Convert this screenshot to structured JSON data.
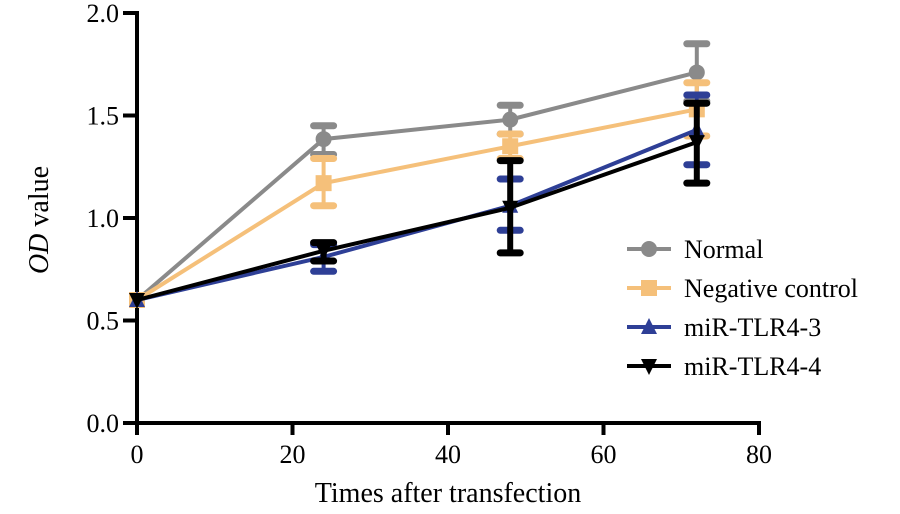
{
  "chart_data": {
    "type": "line",
    "title": "",
    "xlabel": "Times after transfection",
    "ylabel_italic": "OD",
    "ylabel_rest": " value",
    "xlim": [
      0,
      80
    ],
    "ylim": [
      0,
      2.0
    ],
    "xticks": [
      0,
      20,
      40,
      60,
      80
    ],
    "xtick_labels": [
      "0",
      "20",
      "40",
      "60",
      "80"
    ],
    "yticks": [
      0,
      0.5,
      1.0,
      1.5,
      2.0
    ],
    "ytick_labels": [
      "0.0",
      "0.5",
      "1.0",
      "1.5",
      "2.0"
    ],
    "grid": false,
    "legend_position": "right",
    "x": [
      0,
      24,
      48,
      72
    ],
    "series": [
      {
        "name": "Normal",
        "color": "#8a8a8a",
        "marker": "circle",
        "values": [
          0.6,
          1.385,
          1.48,
          1.71
        ],
        "err_low": [
          0.6,
          1.31,
          1.41,
          1.57
        ],
        "err_high": [
          0.6,
          1.45,
          1.55,
          1.85
        ]
      },
      {
        "name": "Negative control",
        "color": "#f5c07a",
        "marker": "square",
        "values": [
          0.6,
          1.17,
          1.35,
          1.53
        ],
        "err_low": [
          0.6,
          1.06,
          1.29,
          1.4
        ],
        "err_high": [
          0.6,
          1.29,
          1.41,
          1.66
        ]
      },
      {
        "name": "miR-TLR4-3",
        "color": "#2e3f96",
        "marker": "triangle-up",
        "values": [
          0.6,
          0.81,
          1.06,
          1.43
        ],
        "err_low": [
          0.6,
          0.74,
          0.94,
          1.26
        ],
        "err_high": [
          0.6,
          0.87,
          1.19,
          1.6
        ]
      },
      {
        "name": "miR-TLR4-4",
        "color": "#000000",
        "marker": "triangle-down",
        "values": [
          0.6,
          0.84,
          1.05,
          1.37
        ],
        "err_low": [
          0.6,
          0.79,
          0.83,
          1.17
        ],
        "err_high": [
          0.6,
          0.88,
          1.28,
          1.56
        ]
      }
    ]
  }
}
